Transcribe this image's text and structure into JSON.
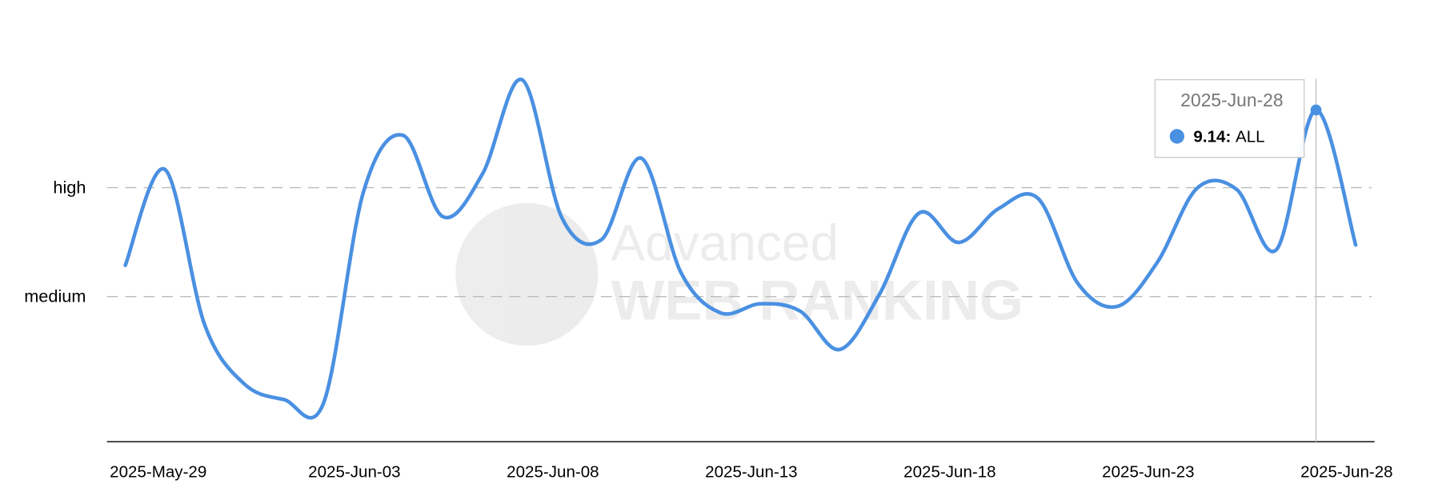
{
  "chart_data": {
    "type": "line",
    "x": [
      "2025-May-29",
      "2025-May-30",
      "2025-May-31",
      "2025-Jun-01",
      "2025-Jun-02",
      "2025-Jun-03",
      "2025-Jun-04",
      "2025-Jun-05",
      "2025-Jun-06",
      "2025-Jun-07",
      "2025-Jun-08",
      "2025-Jun-09",
      "2025-Jun-10",
      "2025-Jun-11",
      "2025-Jun-12",
      "2025-Jun-13",
      "2025-Jun-14",
      "2025-Jun-15",
      "2025-Jun-16",
      "2025-Jun-17",
      "2025-Jun-18",
      "2025-Jun-19",
      "2025-Jun-20",
      "2025-Jun-21",
      "2025-Jun-22",
      "2025-Jun-23",
      "2025-Jun-24",
      "2025-Jun-25",
      "2025-Jun-26",
      "2025-Jun-27",
      "2025-Jun-28",
      "2025-Jun-29"
    ],
    "xticks": [
      "2025-May-29",
      "2025-Jun-03",
      "2025-Jun-08",
      "2025-Jun-13",
      "2025-Jun-18",
      "2025-Jun-23",
      "2025-Jun-28"
    ],
    "series": [
      {
        "name": "ALL",
        "color": "#4a90e2",
        "values": [
          4.86,
          7.5,
          3.22,
          1.59,
          1.16,
          1.08,
          6.88,
          8.44,
          6.2,
          7.38,
          9.97,
          6.17,
          5.57,
          7.81,
          4.66,
          3.55,
          3.8,
          3.6,
          2.54,
          4.06,
          6.3,
          5.49,
          6.42,
          6.7,
          4.36,
          3.73,
          4.94,
          6.98,
          6.95,
          5.29,
          9.14,
          5.42
        ]
      }
    ],
    "ylim": [
      0,
      10
    ],
    "yticks": [
      {
        "value": 4,
        "label": "medium"
      },
      {
        "value": 7,
        "label": "high"
      }
    ],
    "grid": true,
    "tooltip_index": 30
  },
  "watermark": {
    "line1": "Advanced",
    "line2": "WEB RANKING"
  }
}
